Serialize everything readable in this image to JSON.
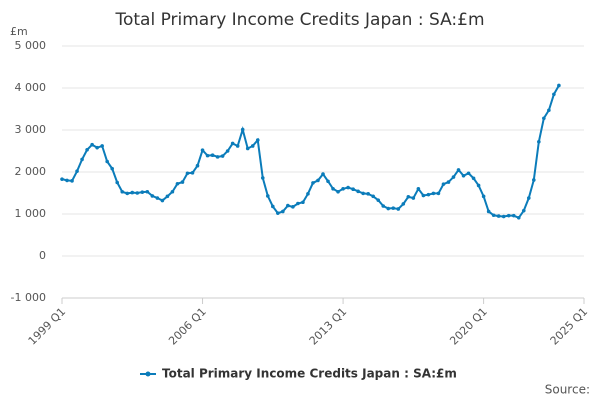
{
  "chart_data": {
    "type": "line",
    "title": "Total Primary Income Credits Japan : SA:£m",
    "y_label": "£m",
    "source": "Source:",
    "categories": [
      "1999 Q1",
      "1999 Q2",
      "1999 Q3",
      "1999 Q4",
      "2000 Q1",
      "2000 Q2",
      "2000 Q3",
      "2000 Q4",
      "2001 Q1",
      "2001 Q2",
      "2001 Q3",
      "2001 Q4",
      "2002 Q1",
      "2002 Q2",
      "2002 Q3",
      "2002 Q4",
      "2003 Q1",
      "2003 Q2",
      "2003 Q3",
      "2003 Q4",
      "2004 Q1",
      "2004 Q2",
      "2004 Q3",
      "2004 Q4",
      "2005 Q1",
      "2005 Q2",
      "2005 Q3",
      "2005 Q4",
      "2006 Q1",
      "2006 Q2",
      "2006 Q3",
      "2006 Q4",
      "2007 Q1",
      "2007 Q2",
      "2007 Q3",
      "2007 Q4",
      "2008 Q1",
      "2008 Q2",
      "2008 Q3",
      "2008 Q4",
      "2009 Q1",
      "2009 Q2",
      "2009 Q3",
      "2009 Q4",
      "2010 Q1",
      "2010 Q2",
      "2010 Q3",
      "2010 Q4",
      "2011 Q1",
      "2011 Q2",
      "2011 Q3",
      "2011 Q4",
      "2012 Q1",
      "2012 Q2",
      "2012 Q3",
      "2012 Q4",
      "2013 Q1",
      "2013 Q2",
      "2013 Q3",
      "2013 Q4",
      "2014 Q1",
      "2014 Q2",
      "2014 Q3",
      "2014 Q4",
      "2015 Q1",
      "2015 Q2",
      "2015 Q3",
      "2015 Q4",
      "2016 Q1",
      "2016 Q2",
      "2016 Q3",
      "2016 Q4",
      "2017 Q1",
      "2017 Q2",
      "2017 Q3",
      "2017 Q4",
      "2018 Q1",
      "2018 Q2",
      "2018 Q3",
      "2018 Q4",
      "2019 Q1",
      "2019 Q2",
      "2019 Q3",
      "2019 Q4",
      "2020 Q1",
      "2020 Q2",
      "2020 Q3",
      "2020 Q4",
      "2021 Q1",
      "2021 Q2",
      "2021 Q3",
      "2021 Q4",
      "2022 Q1",
      "2022 Q2",
      "2022 Q3",
      "2022 Q4",
      "2023 Q1",
      "2023 Q2",
      "2023 Q3",
      "2023 Q4"
    ],
    "series": [
      {
        "name": "Total Primary Income Credits Japan : SA:£m",
        "color": "#0b7cba",
        "values": [
          1830,
          1800,
          1790,
          2020,
          2300,
          2530,
          2650,
          2580,
          2620,
          2250,
          2080,
          1750,
          1530,
          1490,
          1510,
          1500,
          1520,
          1530,
          1430,
          1380,
          1320,
          1420,
          1530,
          1720,
          1760,
          1970,
          1980,
          2150,
          2520,
          2390,
          2400,
          2360,
          2380,
          2500,
          2680,
          2620,
          3010,
          2560,
          2620,
          2760,
          1860,
          1430,
          1180,
          1020,
          1060,
          1200,
          1170,
          1250,
          1280,
          1480,
          1740,
          1800,
          1950,
          1780,
          1600,
          1530,
          1600,
          1630,
          1590,
          1540,
          1490,
          1480,
          1420,
          1330,
          1190,
          1130,
          1140,
          1120,
          1240,
          1410,
          1380,
          1600,
          1440,
          1460,
          1490,
          1490,
          1710,
          1760,
          1880,
          2050,
          1910,
          1970,
          1850,
          1680,
          1420,
          1060,
          970,
          950,
          940,
          960,
          960,
          910,
          1080,
          1380,
          1810,
          2720,
          3280,
          3470,
          3850,
          4060
        ]
      }
    ],
    "xlim": [
      0,
      104
    ],
    "xticks": [
      {
        "value": 0,
        "label": "1999 Q1"
      },
      {
        "value": 28,
        "label": "2006 Q1"
      },
      {
        "value": 56,
        "label": "2013 Q1"
      },
      {
        "value": 84,
        "label": "2020 Q1"
      },
      {
        "value": 104,
        "label": "2025 Q1"
      }
    ],
    "ylim": [
      -1000,
      5000
    ],
    "yticks": [
      {
        "value": -1000,
        "label": "-1 000"
      },
      0,
      {
        "value": 1000,
        "label": "1 000"
      },
      {
        "value": 2000,
        "label": "2 000"
      },
      {
        "value": 3000,
        "label": "3 000"
      },
      {
        "value": 4000,
        "label": "4 000"
      },
      {
        "value": 5000,
        "label": "5 000"
      }
    ],
    "grid": true
  }
}
